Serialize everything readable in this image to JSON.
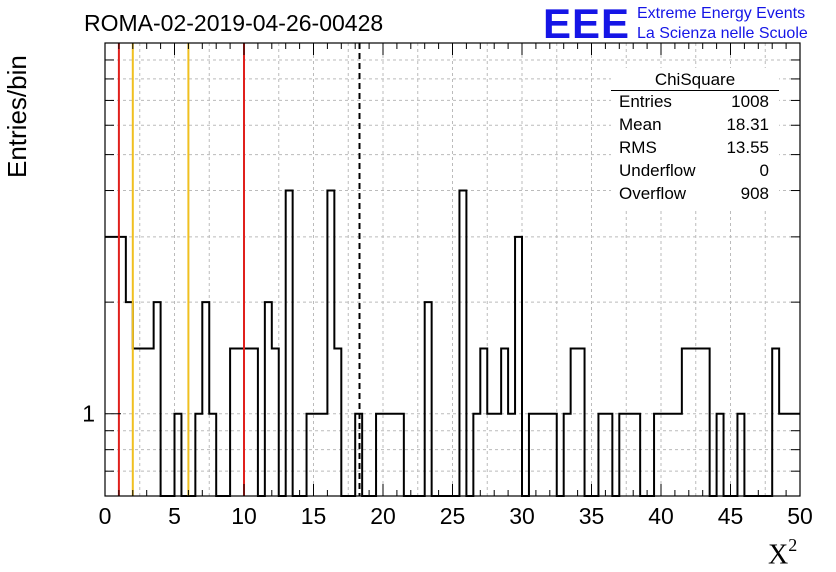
{
  "title": "ROMA-02-2019-04-26-00428",
  "logo": {
    "mark": "EEE",
    "line1": "Extreme Energy Events",
    "line2": "La Scienza nelle Scuole",
    "color": "#1515e6"
  },
  "stats": {
    "title": "ChiSquare",
    "rows": [
      {
        "key": "Entries",
        "value": "1008"
      },
      {
        "key": "Mean",
        "value": "18.31"
      },
      {
        "key": "RMS",
        "value": "13.55"
      },
      {
        "key": "Underflow",
        "value": "0"
      },
      {
        "key": "Overflow",
        "value": "908"
      }
    ]
  },
  "chart_data": {
    "type": "histogram",
    "xlabel": "X",
    "xlabel_sup": "2",
    "ylabel": "Entries/bin",
    "xlim": [
      0,
      50
    ],
    "ylim": [
      0.6,
      10
    ],
    "y_scale": "log",
    "y_ticks": [
      1
    ],
    "x_ticks": [
      0,
      5,
      10,
      15,
      20,
      25,
      30,
      35,
      40,
      45,
      50
    ],
    "grid": true,
    "bin_width": 0.5,
    "bins": [
      [
        0,
        3
      ],
      [
        0.5,
        3
      ],
      [
        1,
        3
      ],
      [
        1.5,
        2
      ],
      [
        2,
        1.5
      ],
      [
        2.5,
        1.5
      ],
      [
        3,
        1.5
      ],
      [
        3.5,
        2
      ],
      [
        5,
        1
      ],
      [
        6.5,
        1
      ],
      [
        7,
        2
      ],
      [
        7.5,
        1
      ],
      [
        9,
        1.5
      ],
      [
        9.5,
        1.5
      ],
      [
        10,
        1.5
      ],
      [
        10.5,
        1.5
      ],
      [
        11.5,
        2
      ],
      [
        12,
        1.5
      ],
      [
        13,
        4
      ],
      [
        14.5,
        1
      ],
      [
        15,
        1
      ],
      [
        15.5,
        1
      ],
      [
        16,
        4
      ],
      [
        16.5,
        1.5
      ],
      [
        18,
        1
      ],
      [
        19.5,
        1
      ],
      [
        20,
        1
      ],
      [
        20.5,
        1
      ],
      [
        21,
        1
      ],
      [
        23,
        2
      ],
      [
        25.5,
        4
      ],
      [
        26.5,
        1
      ],
      [
        27,
        1.5
      ],
      [
        27.5,
        1
      ],
      [
        28,
        1
      ],
      [
        28.5,
        1.5
      ],
      [
        29,
        1
      ],
      [
        29.5,
        3
      ],
      [
        30.5,
        1
      ],
      [
        31,
        1
      ],
      [
        31.5,
        1
      ],
      [
        32,
        1
      ],
      [
        33,
        1
      ],
      [
        33.5,
        1.5
      ],
      [
        34,
        1.5
      ],
      [
        35.5,
        1
      ],
      [
        36,
        1
      ],
      [
        37,
        1
      ],
      [
        37.5,
        1
      ],
      [
        38,
        1
      ],
      [
        39.5,
        1
      ],
      [
        40,
        1
      ],
      [
        40.5,
        1
      ],
      [
        41,
        1
      ],
      [
        41.5,
        1.5
      ],
      [
        42,
        1.5
      ],
      [
        42.5,
        1.5
      ],
      [
        43,
        1.5
      ],
      [
        44,
        1
      ],
      [
        45.5,
        1
      ],
      [
        48,
        1.5
      ],
      [
        48.5,
        1
      ],
      [
        49,
        1
      ],
      [
        49.5,
        1
      ]
    ],
    "markers": [
      {
        "x": 1,
        "color": "#e0201c"
      },
      {
        "x": 2,
        "color": "#f0c020"
      },
      {
        "x": 6,
        "color": "#f0c020"
      },
      {
        "x": 10,
        "color": "#e0201c"
      }
    ],
    "mean_line": {
      "x": 18.31,
      "style": "dashed",
      "color": "#000000"
    }
  }
}
